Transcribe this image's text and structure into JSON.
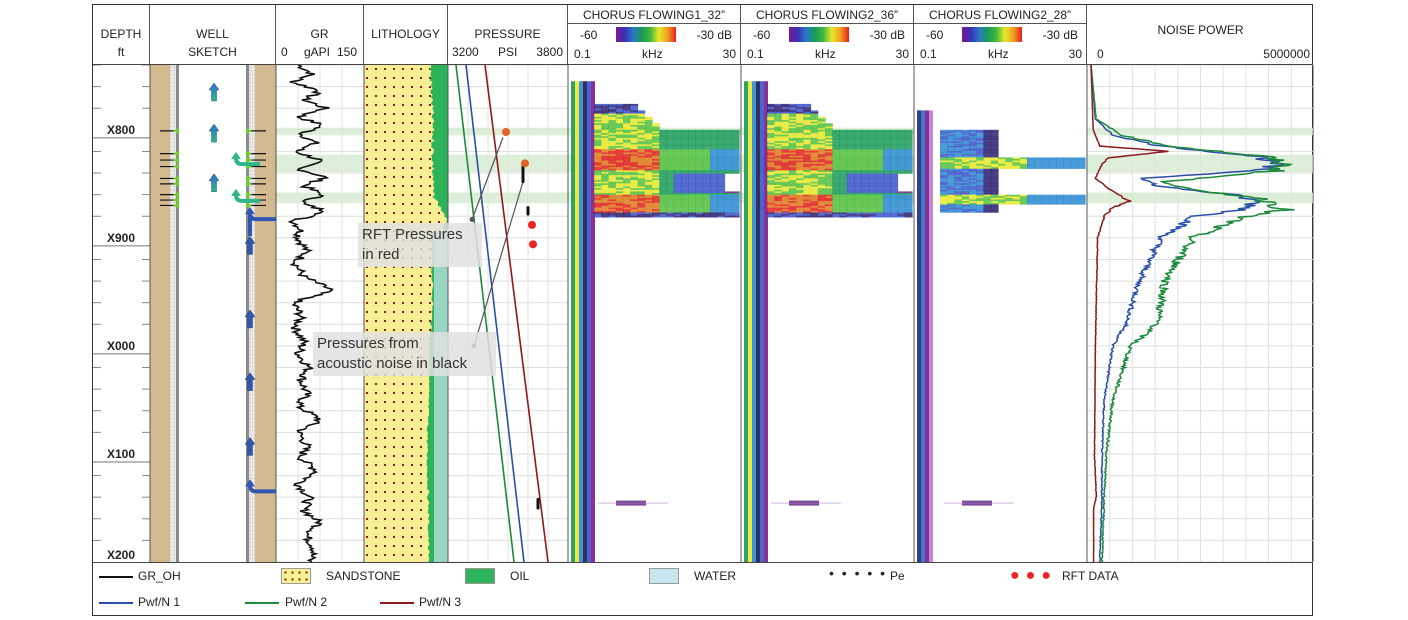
{
  "headers": {
    "depth": {
      "title": "DEPTH",
      "unit": "ft"
    },
    "well": {
      "title": "WELL",
      "subtitle": "SKETCH"
    },
    "gr": {
      "title": "GR",
      "min": "0",
      "unit": "gAPI",
      "max": "150"
    },
    "lithology": {
      "title": "LITHOLOGY"
    },
    "pressure": {
      "title": "PRESSURE",
      "min": "3200",
      "unit": "PSI",
      "max": "3800"
    },
    "spec1": {
      "title": "CHORUS FLOWING1_32”",
      "db_min": "-60",
      "db_max": "-30 dB",
      "f_min": "0.1",
      "f_unit": "kHz",
      "f_max": "30"
    },
    "spec2": {
      "title": "CHORUS FLOWING2_36”",
      "db_min": "-60",
      "db_max": "-30 dB",
      "f_min": "0.1",
      "f_unit": "kHz",
      "f_max": "30"
    },
    "spec3": {
      "title": "CHORUS FLOWING2_28”",
      "db_min": "-60",
      "db_max": "-30 dB",
      "f_min": "0.1",
      "f_unit": "kHz",
      "f_max": "30"
    },
    "noise": {
      "title": "NOISE POWER",
      "min": "0",
      "max": "5000000"
    }
  },
  "callouts": {
    "rft": [
      "RFT Pressures",
      "in red"
    ],
    "acoustic": [
      "Pressures from",
      "acoustic noise in black"
    ]
  },
  "legend": {
    "gr_oh": "GR_OH",
    "sandstone": "SANDSTONE",
    "oil": "OIL",
    "water": "WATER",
    "pe": "Pe",
    "rft": "RFT DATA",
    "pwf1": "Pwf/N 1",
    "pwf2": "Pwf/N 2",
    "pwf3": "Pwf/N 3"
  },
  "colors": {
    "gr": "#111111",
    "pwf1": "#2a4fa8",
    "pwf2": "#1c8a3a",
    "pwf3": "#8b1a1a",
    "oil": "#2db35a",
    "water": "#c6e6ef",
    "sandstone": "#f8ef95",
    "rft": "#ee2222",
    "rft_matched": "#e0642a",
    "zone": "#d4ead0",
    "casing": "#d2b98f"
  },
  "chart_data": {
    "type": "well-log",
    "depth_axis": {
      "ylabel": "DEPTH ft",
      "range": [
        "X740",
        "X200"
      ],
      "tick_labels": [
        "X800",
        "X900",
        "X000",
        "X100",
        "X200"
      ],
      "tick_depths_rel": [
        800,
        900,
        1000,
        1100,
        1200
      ],
      "top_rel": 740,
      "bottom_rel": 1200
    },
    "producing_zones_rel": [
      [
        798,
        805
      ],
      [
        823,
        839
      ],
      [
        858,
        868
      ]
    ],
    "well_sketch": {
      "perforations_rel": [
        801,
        822,
        828,
        834,
        845,
        850,
        860,
        865,
        870
      ],
      "arrows": [
        {
          "depth_rel": 765,
          "type": "up",
          "color": "teal"
        },
        {
          "depth_rel": 803,
          "type": "up",
          "color": "teal"
        },
        {
          "depth_rel": 849,
          "type": "up",
          "color": "teal"
        },
        {
          "depth_rel": 828,
          "type": "inflow",
          "color": "teal"
        },
        {
          "depth_rel": 862,
          "type": "inflow",
          "color": "teal"
        },
        {
          "depth_rel": 878,
          "type": "inflow",
          "color": "blue"
        },
        {
          "depth_rel": 907,
          "type": "up",
          "color": "blue"
        },
        {
          "depth_rel": 975,
          "type": "up",
          "color": "blue"
        },
        {
          "depth_rel": 1033,
          "type": "up",
          "color": "blue"
        },
        {
          "depth_rel": 1093,
          "type": "up",
          "color": "blue"
        },
        {
          "depth_rel": 1130,
          "type": "inflow",
          "color": "blue"
        }
      ]
    },
    "gr": {
      "name": "GR_OH",
      "xlim": [
        0,
        150
      ],
      "unit": "gAPI",
      "depth_rel": [
        740,
        748,
        756,
        764,
        772,
        780,
        788,
        796,
        804,
        812,
        820,
        828,
        836,
        844,
        852,
        860,
        868,
        876,
        884,
        892,
        900,
        912,
        924,
        936,
        948,
        960,
        972,
        984,
        996,
        1008,
        1020,
        1032,
        1044,
        1056,
        1068,
        1080,
        1092,
        1104,
        1116,
        1128,
        1140,
        1152,
        1164,
        1176,
        1188,
        1200
      ],
      "values": [
        30,
        55,
        20,
        70,
        40,
        80,
        30,
        75,
        35,
        60,
        25,
        70,
        30,
        80,
        40,
        75,
        35,
        85,
        20,
        35,
        30,
        45,
        25,
        40,
        90,
        20,
        35,
        25,
        40,
        30,
        50,
        35,
        45,
        30,
        70,
        30,
        45,
        35,
        65,
        30,
        50,
        40,
        70,
        45,
        60,
        50
      ]
    },
    "lithology": {
      "oil_fraction_depth_rel": [
        740,
        800,
        860,
        880,
        900,
        960,
        1000,
        1050,
        1100,
        1150,
        1200
      ],
      "oil_fraction": [
        0.35,
        0.3,
        0.3,
        0.05,
        0.1,
        0.05,
        0.15,
        0.2,
        0.25,
        0.2,
        0.2
      ]
    },
    "pressure": {
      "xlim": [
        3200,
        3800
      ],
      "unit": "PSI",
      "series": [
        {
          "name": "Pwf/N 1",
          "points": [
            [
              3290,
              740
            ],
            [
              3580,
              1200
            ]
          ]
        },
        {
          "name": "Pwf/N 2",
          "points": [
            [
              3240,
              740
            ],
            [
              3530,
              1200
            ]
          ]
        },
        {
          "name": "Pwf/N 3",
          "points": [
            [
              3385,
              740
            ],
            [
              3700,
              1200
            ]
          ]
        }
      ],
      "rft": [
        [
          3490,
          802
        ],
        [
          3585,
          831
        ],
        [
          3620,
          888
        ],
        [
          3625,
          906
        ]
      ],
      "acoustic_segments": [
        [
          3575,
          833,
          848
        ],
        [
          3600,
          872,
          878
        ],
        [
          3650,
          1142,
          1150
        ]
      ]
    },
    "spectrograms": [
      {
        "name": "CHORUS FLOWING1_32”",
        "db_range": [
          -60,
          -30
        ],
        "freq_range_khz": [
          0.1,
          30
        ],
        "active_depth_rel": [
          776,
          880
        ],
        "peak_bands_rel": [
          [
            818,
            836
          ],
          [
            860,
            876
          ]
        ]
      },
      {
        "name": "CHORUS FLOWING2_36”",
        "db_range": [
          -60,
          -30
        ],
        "freq_range_khz": [
          0.1,
          30
        ],
        "active_depth_rel": [
          776,
          880
        ],
        "peak_bands_rel": [
          [
            818,
            836
          ],
          [
            860,
            876
          ]
        ]
      },
      {
        "name": "CHORUS FLOWING2_28”",
        "db_range": [
          -60,
          -30
        ],
        "freq_range_khz": [
          0.1,
          30
        ],
        "active_depth_rel": [
          800,
          875
        ],
        "peak_bands_rel": [
          [
            825,
            835
          ],
          [
            860,
            868
          ]
        ]
      }
    ],
    "noise_power": {
      "xlim": [
        0,
        5000000
      ],
      "series": [
        {
          "name": "Pwf/N 1",
          "depth_rel": [
            740,
            790,
            805,
            815,
            825,
            832,
            838,
            845,
            852,
            860,
            866,
            874,
            880,
            900,
            940,
            980,
            1000,
            1050,
            1100,
            1140,
            1200
          ],
          "values": [
            0,
            100000,
            500000,
            1600000,
            3900000,
            4200000,
            3700000,
            1200000,
            1500000,
            3200000,
            3800000,
            3500000,
            2400000,
            1600000,
            1100000,
            800000,
            500000,
            300000,
            250000,
            250000,
            200000
          ]
        },
        {
          "name": "Pwf/N 2",
          "depth_rel": [
            740,
            790,
            805,
            815,
            825,
            832,
            838,
            848,
            856,
            862,
            868,
            874,
            880,
            900,
            940,
            980,
            1000,
            1050,
            1100,
            1140,
            1200
          ],
          "values": [
            0,
            120000,
            700000,
            1800000,
            4000000,
            4400000,
            4200000,
            1700000,
            2300000,
            3700000,
            4200000,
            4400000,
            3500000,
            2300000,
            1700000,
            1500000,
            900000,
            500000,
            350000,
            300000,
            250000
          ]
        },
        {
          "name": "Pwf/N 3",
          "depth_rel": [
            740,
            800,
            815,
            820,
            826,
            832,
            845,
            860,
            866,
            872,
            880,
            900,
            1000,
            1100,
            1140,
            1150,
            1200
          ],
          "values": [
            0,
            50000,
            200000,
            1800000,
            400000,
            250000,
            100000,
            600000,
            900000,
            500000,
            300000,
            150000,
            100000,
            80000,
            120000,
            60000,
            60000
          ]
        }
      ]
    }
  }
}
